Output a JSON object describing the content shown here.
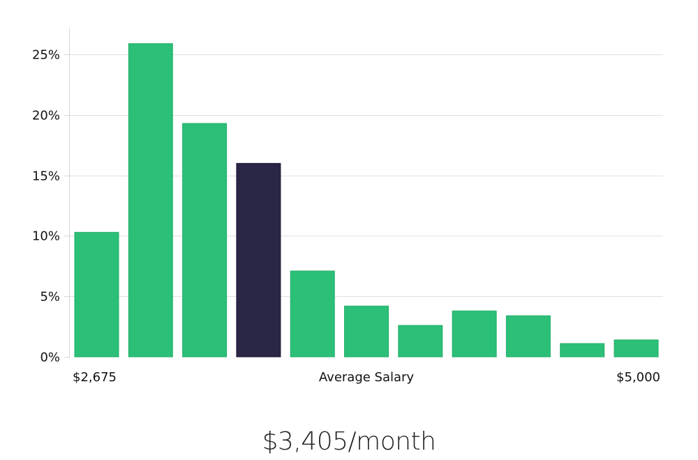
{
  "chart_data": {
    "type": "bar",
    "values": [
      10.3,
      25.9,
      19.3,
      16.0,
      7.1,
      4.2,
      2.6,
      3.8,
      3.4,
      1.1,
      1.4
    ],
    "highlight_index": 3,
    "ylim": [
      0,
      27.2
    ],
    "yticks": [
      {
        "value": 0,
        "label": "0%"
      },
      {
        "value": 5,
        "label": "5%"
      },
      {
        "value": 10,
        "label": "10%"
      },
      {
        "value": 15,
        "label": "15%"
      },
      {
        "value": 20,
        "label": "20%"
      },
      {
        "value": 25,
        "label": "25%"
      }
    ],
    "x_min_label": "$2,675",
    "xlabel": "Average Salary",
    "x_max_label": "$5,000",
    "grid": true,
    "colors": {
      "bar": "#2bbf77",
      "highlight": "#2a2646",
      "grid": "#e1e1e1",
      "axis": "#d6d6d6"
    }
  },
  "summary": "$3,405/month"
}
